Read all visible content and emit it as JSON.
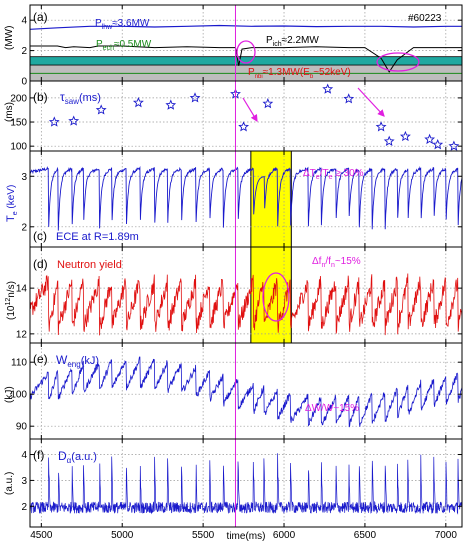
{
  "shot_label": "#60223",
  "x_axis": {
    "label": "time(ms)",
    "range": [
      4430,
      7100
    ],
    "ticks": [
      "4500",
      "5000",
      "5500",
      "6000",
      "6500",
      "7000"
    ],
    "tick_values": [
      4500,
      5000,
      5500,
      6000,
      6500,
      7000
    ]
  },
  "marker_time_ms": 5700,
  "highlight_span_ms": [
    5795,
    6045
  ],
  "colors": {
    "blue": "#1a1acc",
    "red": "#e01010",
    "magenta": "#e020e0",
    "teal": "#1fa8a0",
    "gray": "#bdbdbd",
    "green": "#1a8a1a",
    "highlight": "#ffff00"
  },
  "chart_data": [
    {
      "panel": "a",
      "type": "line",
      "panel_label": "(a)",
      "ylabel": "(MW)",
      "ylim": [
        0,
        5
      ],
      "yticks": [
        "0",
        "2",
        "4"
      ],
      "ytick_values": [
        0,
        2,
        4
      ],
      "series": [
        {
          "name": "P_lhw≈3.6MW",
          "label_main": "P",
          "label_sub": "lhw",
          "label_tail": "≈3.6MW",
          "color": "#1a1acc",
          "x": [
            4430,
            4600,
            4800,
            5000,
            5200,
            5400,
            5600,
            5800,
            6000,
            6200,
            6400,
            6600,
            6800,
            7000,
            7100
          ],
          "y": [
            3.4,
            3.5,
            3.6,
            3.6,
            3.55,
            3.6,
            3.65,
            3.6,
            3.62,
            3.58,
            3.6,
            3.6,
            3.55,
            3.6,
            3.6
          ]
        },
        {
          "name": "P_ech≈0.5MW",
          "label_main": "P",
          "label_sub": "ech",
          "label_tail": "≈0.5MW",
          "color": "#1a8a1a",
          "x": [
            4430,
            4700,
            4750,
            4900,
            4950,
            5500,
            5550,
            6100,
            6150,
            7100
          ],
          "y": [
            0.5,
            0.5,
            0.5,
            0.5,
            0.5,
            0.5,
            0.5,
            0.5,
            0.5,
            0.5
          ]
        },
        {
          "name": "P_ich≈2.2MW",
          "label_main": "P",
          "label_sub": "ich",
          "label_tail": "≈2.2MW",
          "color": "#000000",
          "x": [
            4430,
            4600,
            4650,
            4700,
            4800,
            4850,
            5000,
            5200,
            5400,
            5600,
            5700,
            5720,
            5740,
            5800,
            6000,
            6200,
            6400,
            6500,
            6600,
            6650,
            6700,
            6800,
            7100
          ],
          "y": [
            2.3,
            2.3,
            2.2,
            2.25,
            2.2,
            2.3,
            2.3,
            2.2,
            2.25,
            2.2,
            2.2,
            1.0,
            2.1,
            2.2,
            2.2,
            2.25,
            2.2,
            2.2,
            1.5,
            0.6,
            1.4,
            2.2,
            2.2
          ]
        },
        {
          "name": "P_nbi≈1.3MW(E_b~52keV)",
          "label_main": "P",
          "label_sub": "nbi",
          "label_tail": "≈1.3MW(E",
          "label_sub2": "b",
          "label_tail2": "~52keV)",
          "color": "#1fa8a0",
          "x": [
            4430,
            7100
          ],
          "y": [
            1.3,
            1.3
          ]
        }
      ],
      "annotations": []
    },
    {
      "panel": "b",
      "type": "scatter",
      "panel_label": "(b)",
      "label_main": "τ",
      "label_sub": "saw",
      "label_tail": "(ms)",
      "ylabel": "(ms)",
      "ylim": [
        90,
        235
      ],
      "yticks": [
        "100",
        "150",
        "200"
      ],
      "ytick_values": [
        100,
        150,
        200
      ],
      "points": {
        "x": [
          4580,
          4700,
          4870,
          5100,
          5300,
          5450,
          5700,
          5750,
          5900,
          6270,
          6400,
          6600,
          6650,
          6750,
          6900,
          6950,
          7050
        ],
        "y": [
          150,
          152,
          175,
          190,
          185,
          200,
          208,
          140,
          188,
          218,
          198,
          140,
          110,
          120,
          114,
          103,
          100
        ]
      },
      "annotations": []
    },
    {
      "panel": "c",
      "type": "line",
      "panel_label": "(c)",
      "ylabel": "T_e (keV)",
      "ylabel_main": "T",
      "ylabel_sub": "e",
      "ylabel_tail": " (keV)",
      "ylim": [
        1.6,
        3.5
      ],
      "yticks": [
        "2",
        "3"
      ],
      "ytick_values": [
        2,
        3
      ],
      "caption": "ECE at R=1.89m",
      "annotations": [
        {
          "main": "ΔT",
          "sub1": "e",
          "mid": "/T",
          "sub2": "e",
          "tail": " ≥ 30%"
        }
      ]
    },
    {
      "panel": "d",
      "type": "line",
      "panel_label": "(d)",
      "ylabel": "(10^12 n/s)",
      "ylabel_main": "(10",
      "ylabel_sup": "12",
      "ylabel_tail": "n/s)",
      "ylim": [
        11.6,
        15.8
      ],
      "yticks": [
        "12",
        "14"
      ],
      "ytick_values": [
        12,
        14
      ],
      "caption": "Neutron yield",
      "annotations": [
        {
          "main": "Δf",
          "sub1": "n",
          "mid": "/f",
          "sub2": "n",
          "tail": "~15%"
        }
      ]
    },
    {
      "panel": "e",
      "type": "line",
      "panel_label": "(e)",
      "label_main": "W",
      "label_sub": "eng",
      "label_tail": "(kJ)",
      "ylabel": "(kJ)",
      "ylim": [
        86,
        116
      ],
      "yticks": [
        "90",
        "100",
        "110"
      ],
      "ytick_values": [
        90,
        100,
        110
      ],
      "annotations": [
        {
          "text": "ΔW/W~15%"
        }
      ]
    },
    {
      "panel": "f",
      "type": "line",
      "panel_label": "(f)",
      "label_main": "D",
      "label_sub": "α",
      "label_tail": "(a.u.)",
      "ylabel": "(a.u.)",
      "ylim": [
        1.2,
        4.6
      ],
      "yticks": [
        "2",
        "3",
        "4"
      ],
      "ytick_values": [
        2,
        3,
        4
      ],
      "annotations": []
    }
  ]
}
